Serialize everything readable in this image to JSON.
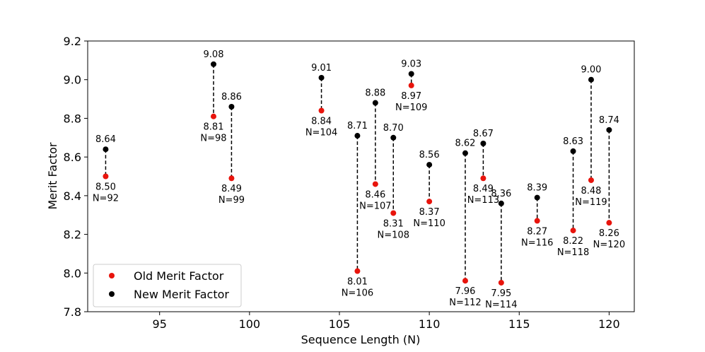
{
  "chart_data": {
    "type": "scatter",
    "xlabel": "Sequence Length (N)",
    "ylabel": "Merit Factor",
    "xlim": [
      91,
      121.4
    ],
    "ylim": [
      7.8,
      9.2
    ],
    "x_ticks": [
      95,
      100,
      105,
      110,
      115,
      120
    ],
    "y_ticks": [
      7.8,
      8.0,
      8.2,
      8.4,
      8.6,
      8.8,
      9.0,
      9.2
    ],
    "legend_position": "bottom-left",
    "series": [
      {
        "name": "Old Merit Factor",
        "color": "#e8140c"
      },
      {
        "name": "New Merit Factor",
        "color": "#000000"
      }
    ],
    "points": [
      {
        "n": 92,
        "old": 8.5,
        "new": 8.64,
        "old_label": "8.50",
        "new_label": "8.64",
        "n_label": "N=92"
      },
      {
        "n": 98,
        "old": 8.81,
        "new": 9.08,
        "old_label": "8.81",
        "new_label": "9.08",
        "n_label": "N=98"
      },
      {
        "n": 99,
        "old": 8.49,
        "new": 8.86,
        "old_label": "8.49",
        "new_label": "8.86",
        "n_label": "N=99"
      },
      {
        "n": 104,
        "old": 8.84,
        "new": 9.01,
        "old_label": "8.84",
        "new_label": "9.01",
        "n_label": "N=104"
      },
      {
        "n": 106,
        "old": 8.01,
        "new": 8.71,
        "old_label": "8.01",
        "new_label": "8.71",
        "n_label": "N=106"
      },
      {
        "n": 107,
        "old": 8.46,
        "new": 8.88,
        "old_label": "8.46",
        "new_label": "8.88",
        "n_label": "N=107"
      },
      {
        "n": 108,
        "old": 8.31,
        "new": 8.7,
        "old_label": "8.31",
        "new_label": "8.70",
        "n_label": "N=108"
      },
      {
        "n": 109,
        "old": 8.97,
        "new": 9.03,
        "old_label": "8.97",
        "new_label": "9.03",
        "n_label": "N=109"
      },
      {
        "n": 110,
        "old": 8.37,
        "new": 8.56,
        "old_label": "8.37",
        "new_label": "8.56",
        "n_label": "N=110"
      },
      {
        "n": 112,
        "old": 7.96,
        "new": 8.62,
        "old_label": "7.96",
        "new_label": "8.62",
        "n_label": "N=112"
      },
      {
        "n": 113,
        "old": 8.49,
        "new": 8.67,
        "old_label": "8.49",
        "new_label": "8.67",
        "n_label": "N=113"
      },
      {
        "n": 114,
        "old": 7.95,
        "new": 8.36,
        "old_label": "7.95",
        "new_label": "8.36",
        "n_label": "N=114"
      },
      {
        "n": 116,
        "old": 8.27,
        "new": 8.39,
        "old_label": "8.27",
        "new_label": "8.39",
        "n_label": "N=116"
      },
      {
        "n": 118,
        "old": 8.22,
        "new": 8.63,
        "old_label": "8.22",
        "new_label": "8.63",
        "n_label": "N=118"
      },
      {
        "n": 119,
        "old": 8.48,
        "new": 9.0,
        "old_label": "8.48",
        "new_label": "9.00",
        "n_label": "N=119"
      },
      {
        "n": 120,
        "old": 8.26,
        "new": 8.74,
        "old_label": "8.26",
        "new_label": "8.74",
        "n_label": "N=120"
      }
    ]
  }
}
